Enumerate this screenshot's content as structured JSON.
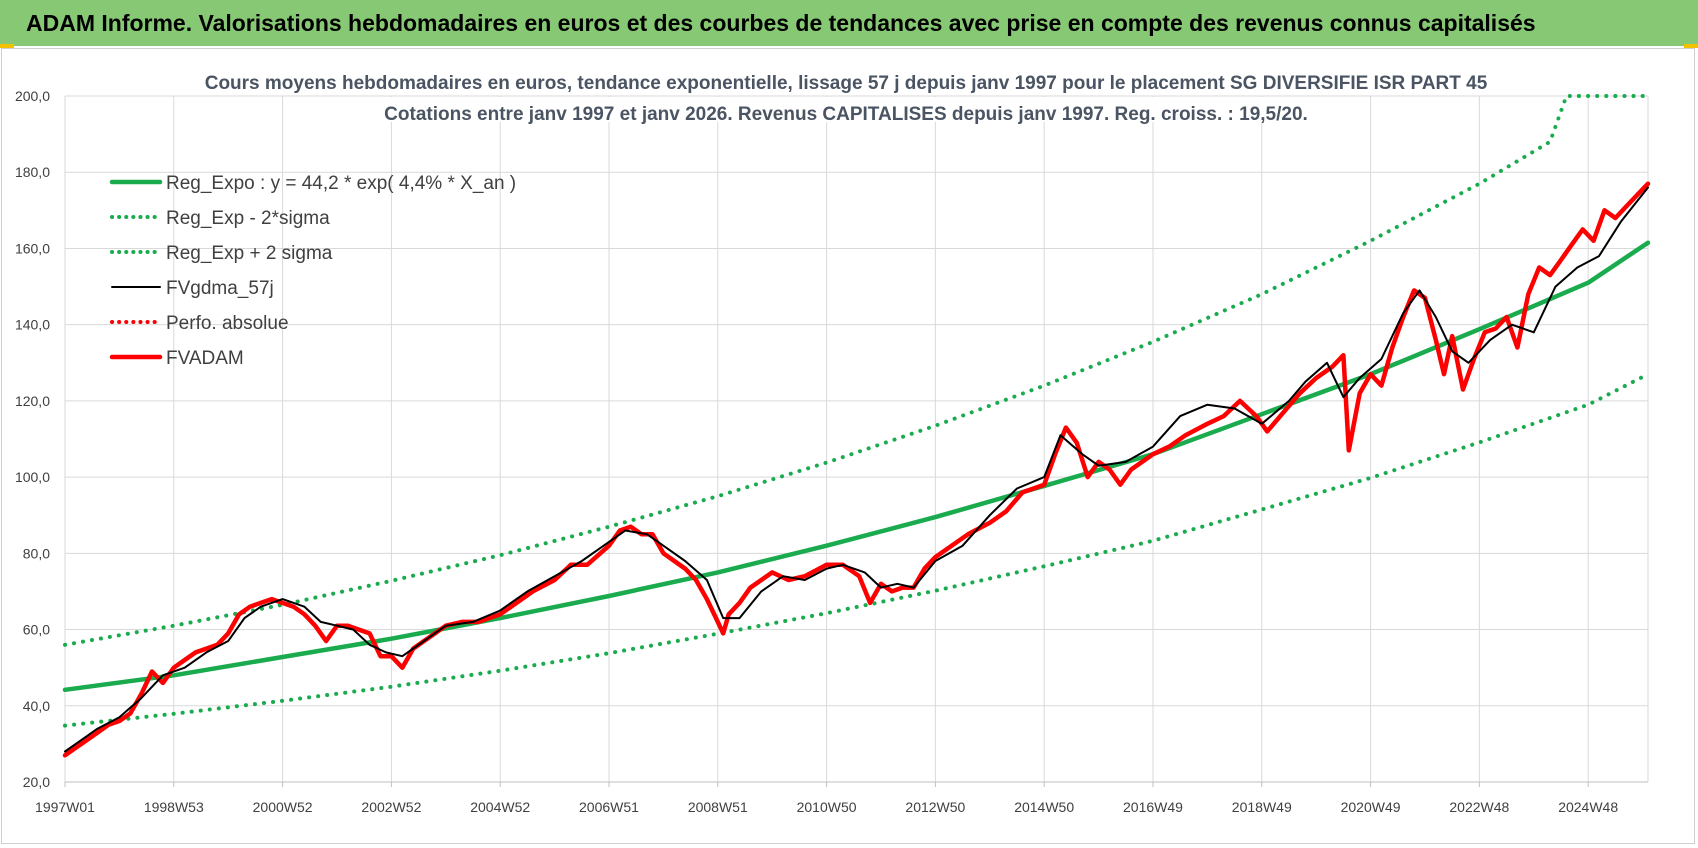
{
  "banner": {
    "title": "ADAM Informe. Valorisations hebdomadaires en euros et des courbes de tendances avec prise en compte des revenus connus capitalisés"
  },
  "colors": {
    "banner": "#86c873",
    "trend": "#1aab4f",
    "smooth": "#000000",
    "price": "#ff0000",
    "grid": "#d9d9d9"
  },
  "chart_data": {
    "type": "line",
    "title": "Cours moyens hebdomadaires en euros, tendance exponentielle, lissage 57 j depuis janv 1997 pour le placement SG DIVERSIFIE ISR PART 45",
    "subtitle": "Cotations entre janv 1997 et janv 2026. Revenus CAPITALISES depuis janv 1997. Reg. croiss. : 19,5/20.",
    "xlabel": "",
    "ylabel": "",
    "ylim": [
      20,
      200
    ],
    "yticks": [
      "20,0",
      "40,0",
      "60,0",
      "80,0",
      "100,0",
      "120,0",
      "140,0",
      "160,0",
      "180,0",
      "200,0"
    ],
    "xlim": [
      1997.0,
      2026.1
    ],
    "xticks": [
      {
        "label": "1997W01",
        "x": 1997.0
      },
      {
        "label": "1998W53",
        "x": 1999.0
      },
      {
        "label": "2000W52",
        "x": 2001.0
      },
      {
        "label": "2002W52",
        "x": 2003.0
      },
      {
        "label": "2004W52",
        "x": 2005.0
      },
      {
        "label": "2006W51",
        "x": 2007.0
      },
      {
        "label": "2008W51",
        "x": 2009.0
      },
      {
        "label": "2010W50",
        "x": 2011.0
      },
      {
        "label": "2012W50",
        "x": 2013.0
      },
      {
        "label": "2014W50",
        "x": 2015.0
      },
      {
        "label": "2016W49",
        "x": 2017.0
      },
      {
        "label": "2018W49",
        "x": 2019.0
      },
      {
        "label": "2020W49",
        "x": 2021.0
      },
      {
        "label": "2022W48",
        "x": 2023.0
      },
      {
        "label": "2024W48",
        "x": 2025.0
      }
    ],
    "grid": true,
    "legend_position": "top-left",
    "series": [
      {
        "name": "Reg_Expo : y = 44,2 * exp( 4,4% *  X_an )",
        "style": "solid-thick",
        "color": "#1aab4f",
        "x": [
          1997.0,
          1999.0,
          2001.0,
          2003.0,
          2005.0,
          2007.0,
          2009.0,
          2011.0,
          2013.0,
          2015.0,
          2017.0,
          2019.0,
          2021.0,
          2023.0,
          2025.0,
          2026.1
        ],
        "y": [
          44.2,
          48.0,
          52.8,
          57.6,
          63.0,
          68.8,
          75.0,
          82.0,
          89.5,
          97.7,
          106.0,
          116.5,
          127.0,
          138.8,
          151.0,
          161.5
        ]
      },
      {
        "name": "Reg_Exp - 2*sigma",
        "style": "dotted",
        "color": "#1aab4f",
        "x": [
          1997.0,
          1999.0,
          2001.0,
          2003.0,
          2005.0,
          2007.0,
          2009.0,
          2011.0,
          2013.0,
          2015.0,
          2017.0,
          2019.0,
          2021.0,
          2023.0,
          2025.0,
          2026.1
        ],
        "y": [
          34.8,
          37.9,
          41.3,
          45.0,
          49.2,
          53.8,
          58.9,
          64.3,
          70.2,
          76.6,
          83.3,
          91.5,
          99.8,
          109.1,
          119.0,
          127.0
        ]
      },
      {
        "name": "Reg_Exp + 2 sigma",
        "style": "dotted",
        "color": "#1aab4f",
        "x": [
          1997.0,
          1999.0,
          2001.0,
          2003.0,
          2005.0,
          2007.0,
          2009.0,
          2011.0,
          2013.0,
          2015.0,
          2017.0,
          2019.0,
          2021.0,
          2023.0,
          2024.3,
          2024.6,
          2025.5,
          2026.1
        ],
        "y": [
          56.0,
          61.0,
          66.5,
          72.8,
          79.5,
          87.0,
          95.0,
          103.8,
          113.5,
          124.0,
          135.5,
          148.0,
          162.0,
          177.0,
          188.0,
          200.0,
          200.0,
          200.0
        ]
      },
      {
        "name": "FVgdma_57j",
        "style": "solid-thin",
        "color": "#000000",
        "x": [
          1997.0,
          1997.3,
          1997.6,
          1998.0,
          1998.4,
          1998.8,
          1999.2,
          1999.6,
          2000.0,
          2000.3,
          2000.6,
          2001.0,
          2001.4,
          2001.7,
          2002.0,
          2002.3,
          2002.6,
          2002.9,
          2003.2,
          2003.6,
          2004.0,
          2004.5,
          2005.0,
          2005.5,
          2006.0,
          2006.5,
          2007.0,
          2007.3,
          2007.7,
          2008.0,
          2008.4,
          2008.8,
          2009.1,
          2009.4,
          2009.8,
          2010.2,
          2010.6,
          2011.0,
          2011.3,
          2011.7,
          2012.0,
          2012.3,
          2012.6,
          2013.0,
          2013.5,
          2014.0,
          2014.5,
          2015.0,
          2015.3,
          2015.7,
          2016.0,
          2016.5,
          2017.0,
          2017.5,
          2018.0,
          2018.5,
          2019.0,
          2019.5,
          2019.8,
          2020.2,
          2020.5,
          2020.8,
          2021.2,
          2021.6,
          2021.9,
          2022.2,
          2022.5,
          2022.8,
          2023.2,
          2023.6,
          2024.0,
          2024.4,
          2024.8,
          2025.2,
          2025.6,
          2026.1
        ],
        "y": [
          28,
          31,
          34,
          37,
          42,
          48,
          50,
          54,
          57,
          63,
          66,
          68,
          66,
          62,
          61,
          60,
          56,
          54,
          53,
          57,
          61,
          62,
          65,
          70,
          74,
          78,
          83,
          86,
          85,
          82,
          78,
          73,
          63,
          63,
          70,
          74,
          73,
          76,
          77,
          75,
          71,
          72,
          71,
          78,
          82,
          90,
          97,
          100,
          111,
          106,
          103,
          104,
          108,
          116,
          119,
          118,
          114,
          120,
          125,
          130,
          121,
          126,
          131,
          143,
          149,
          142,
          133,
          130,
          136,
          140,
          138,
          150,
          155,
          158,
          167,
          176
        ]
      },
      {
        "name": "Perfo. absolue",
        "style": "dotted",
        "color": "#ff0000",
        "x": [],
        "y": []
      },
      {
        "name": "FVADAM",
        "style": "solid-thick",
        "color": "#ff0000",
        "x": [
          1997.0,
          1997.2,
          1997.4,
          1997.6,
          1997.8,
          1998.0,
          1998.2,
          1998.4,
          1998.6,
          1998.8,
          1999.0,
          1999.2,
          1999.4,
          1999.6,
          1999.8,
          2000.0,
          2000.2,
          2000.4,
          2000.6,
          2000.8,
          2001.0,
          2001.2,
          2001.4,
          2001.6,
          2001.8,
          2002.0,
          2002.2,
          2002.4,
          2002.6,
          2002.8,
          2003.0,
          2003.2,
          2003.4,
          2003.6,
          2003.8,
          2004.0,
          2004.3,
          2004.6,
          2005.0,
          2005.3,
          2005.6,
          2006.0,
          2006.3,
          2006.6,
          2007.0,
          2007.2,
          2007.4,
          2007.6,
          2007.8,
          2008.0,
          2008.2,
          2008.4,
          2008.6,
          2008.8,
          2009.0,
          2009.1,
          2009.2,
          2009.4,
          2009.6,
          2009.8,
          2010.0,
          2010.3,
          2010.6,
          2011.0,
          2011.3,
          2011.6,
          2011.8,
          2012.0,
          2012.2,
          2012.4,
          2012.6,
          2012.8,
          2013.0,
          2013.3,
          2013.6,
          2014.0,
          2014.3,
          2014.6,
          2015.0,
          2015.2,
          2015.4,
          2015.6,
          2015.8,
          2016.0,
          2016.2,
          2016.4,
          2016.6,
          2016.8,
          2017.0,
          2017.3,
          2017.6,
          2018.0,
          2018.3,
          2018.6,
          2018.9,
          2019.1,
          2019.4,
          2019.7,
          2020.0,
          2020.3,
          2020.5,
          2020.6,
          2020.8,
          2021.0,
          2021.2,
          2021.4,
          2021.6,
          2021.8,
          2022.0,
          2022.2,
          2022.35,
          2022.5,
          2022.7,
          2022.9,
          2023.1,
          2023.3,
          2023.5,
          2023.7,
          2023.9,
          2024.1,
          2024.3,
          2024.5,
          2024.7,
          2024.9,
          2025.1,
          2025.3,
          2025.5,
          2025.7,
          2025.9,
          2026.1
        ],
        "y": [
          27,
          29,
          31,
          33,
          35,
          36,
          38,
          43,
          49,
          46,
          50,
          52,
          54,
          55,
          56,
          59,
          64,
          66,
          67,
          68,
          67,
          66,
          64,
          61,
          57,
          61,
          61,
          60,
          59,
          53,
          53,
          50,
          55,
          57,
          59,
          61,
          62,
          62,
          64,
          67,
          70,
          73,
          77,
          77,
          82,
          86,
          87,
          85,
          85,
          80,
          78,
          76,
          73,
          68,
          62,
          59,
          64,
          67,
          71,
          73,
          75,
          73,
          74,
          77,
          77,
          74,
          67,
          72,
          70,
          71,
          71,
          76,
          79,
          82,
          85,
          88,
          91,
          96,
          98,
          106,
          113,
          109,
          100,
          104,
          102,
          98,
          102,
          104,
          106,
          108,
          111,
          114,
          116,
          120,
          116,
          112,
          117,
          122,
          126,
          129,
          132,
          107,
          122,
          127,
          124,
          134,
          142,
          149,
          147,
          136,
          127,
          137,
          123,
          131,
          138,
          139,
          142,
          134,
          148,
          155,
          153,
          157,
          161,
          165,
          162,
          170,
          168,
          171,
          174,
          177
        ]
      }
    ]
  }
}
